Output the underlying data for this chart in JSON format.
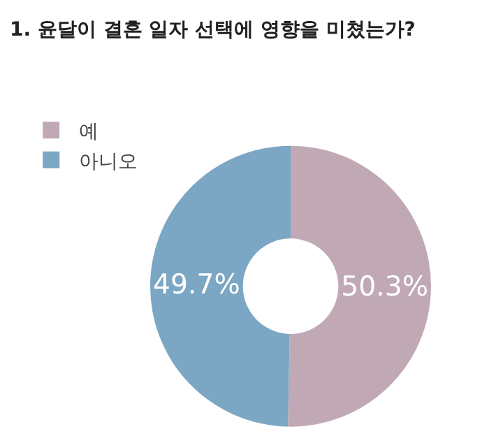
{
  "chart_data": {
    "type": "donut",
    "title": "1. 윤달이 결혼 일자 선택에 영향을 미쳤는가?",
    "categories": [
      "예",
      "아니오"
    ],
    "values": [
      50.3,
      49.7
    ],
    "colors": [
      "#c0a9b5",
      "#7ba6c4"
    ],
    "value_labels": [
      "50.3%",
      "49.7%"
    ],
    "legend": "top left"
  }
}
